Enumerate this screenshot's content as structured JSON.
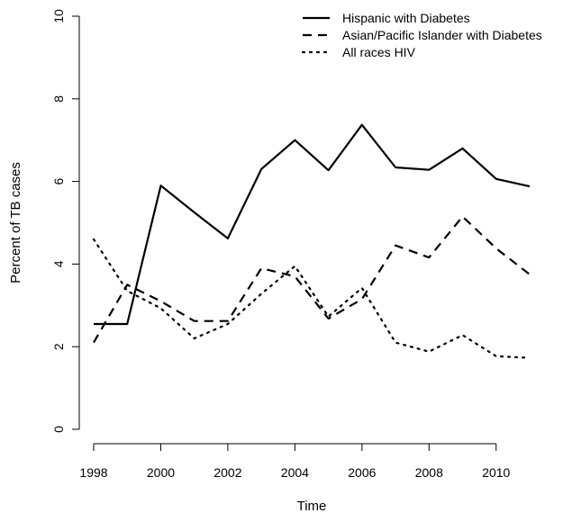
{
  "chart_data": {
    "type": "line",
    "title": "",
    "xlabel": "Time",
    "ylabel": "Percent of TB cases",
    "xlim": [
      1998,
      2011
    ],
    "ylim": [
      0,
      10
    ],
    "x_ticks": [
      1998,
      2000,
      2002,
      2004,
      2006,
      2008,
      2010
    ],
    "y_ticks": [
      0,
      2,
      4,
      6,
      8,
      10
    ],
    "grid": false,
    "legend_position": "top-right",
    "x": [
      1998,
      1999,
      2000,
      2001,
      2002,
      2003,
      2004,
      2005,
      2006,
      2007,
      2008,
      2009,
      2010,
      2011
    ],
    "series": [
      {
        "name": "Hispanic with Diabetes",
        "line_style": "solid",
        "color": "#000000",
        "values": [
          2.55,
          2.55,
          5.9,
          5.25,
          4.62,
          6.3,
          7.0,
          6.27,
          7.37,
          6.34,
          6.28,
          6.8,
          6.06,
          5.88
        ]
      },
      {
        "name": "Asian/Pacific Islander with Diabetes",
        "line_style": "dashed",
        "color": "#000000",
        "values": [
          2.1,
          3.5,
          3.1,
          2.62,
          2.62,
          3.9,
          3.7,
          2.68,
          3.15,
          4.45,
          4.16,
          5.15,
          4.38,
          3.75
        ]
      },
      {
        "name": "All races HIV",
        "line_style": "dotted",
        "color": "#000000",
        "values": [
          4.6,
          3.35,
          2.93,
          2.2,
          2.55,
          3.28,
          3.95,
          2.73,
          3.42,
          2.1,
          1.88,
          2.28,
          1.77,
          1.73
        ]
      }
    ]
  }
}
